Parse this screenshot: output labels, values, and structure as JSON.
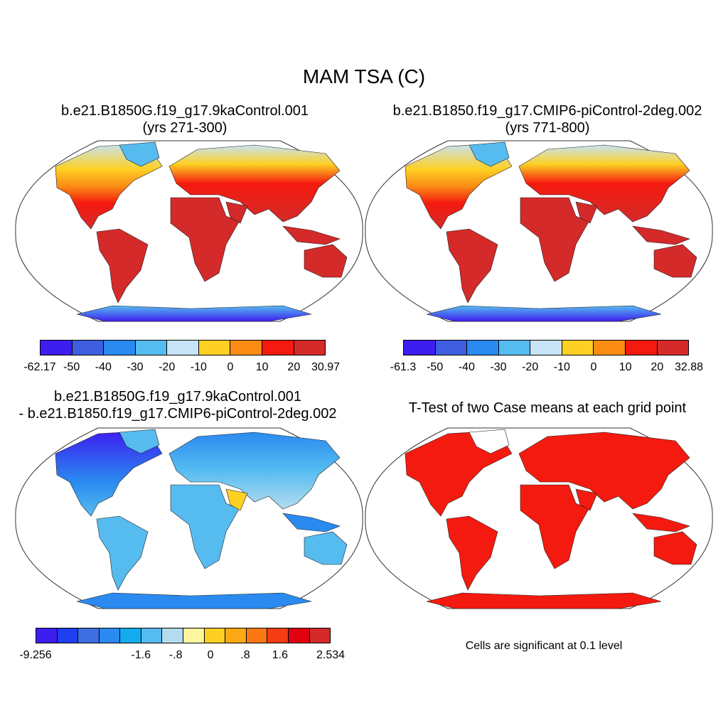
{
  "title": "MAM TSA (C)",
  "panels": [
    {
      "title_line1": "b.e21.B1850G.f19_g17.9kaControl.001",
      "title_line2": "(yrs 271-300)",
      "colorbar": {
        "colors": [
          "#3c1ef0",
          "#3f5ee0",
          "#2a8af0",
          "#56bcf0",
          "#c6e4f6",
          "#fdd023",
          "#fa8c14",
          "#f51a0f",
          "#d42a2a"
        ],
        "labels": [
          "-62.17",
          "-50",
          "-40",
          "-30",
          "-20",
          "-10",
          "0",
          "10",
          "20",
          "30.97"
        ]
      }
    },
    {
      "title_line1": "b.e21.B1850.f19_g17.CMIP6-piControl-2deg.002",
      "title_line2": "(yrs 771-800)",
      "colorbar": {
        "colors": [
          "#3c1ef0",
          "#3f5ee0",
          "#2a8af0",
          "#56bcf0",
          "#c6e4f6",
          "#fdd023",
          "#fa8c14",
          "#f51a0f",
          "#d42a2a"
        ],
        "labels": [
          "-61.3",
          "-50",
          "-40",
          "-30",
          "-20",
          "-10",
          "0",
          "10",
          "20",
          "32.88"
        ]
      }
    },
    {
      "title_line1": "b.e21.B1850G.f19_g17.9kaControl.001",
      "title_line2": "- b.e21.B1850.f19_g17.CMIP6-piControl-2deg.002",
      "colorbar": {
        "colors": [
          "#3c1ef0",
          "#1f3ef0",
          "#3f6ee0",
          "#2a8af0",
          "#14aaf0",
          "#56bcf0",
          "#b4dcf0",
          "#fff59c",
          "#fdd023",
          "#faa814",
          "#fa7814",
          "#f53c14",
          "#e0000f",
          "#d42a2a"
        ],
        "labels": [
          "-9.256",
          "-1.6",
          "-.8",
          "0",
          ".8",
          "1.6",
          "2.534"
        ]
      }
    },
    {
      "title_line1": "T-Test of two Case means at each grid point",
      "note": "Cells are significant at 0.1 level"
    }
  ]
}
